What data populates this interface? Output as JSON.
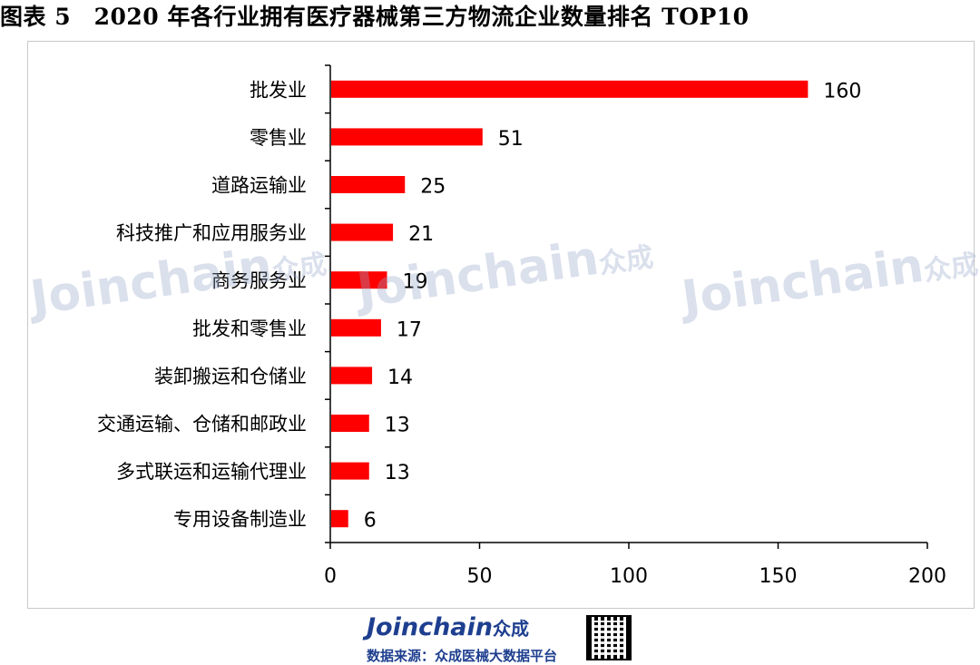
{
  "figure": {
    "title": "图表 5　2020 年各行业拥有医疗器械第三方物流企业数量排名 TOP10"
  },
  "chart_data": {
    "type": "bar",
    "orientation": "horizontal",
    "categories": [
      "批发业",
      "零售业",
      "道路运输业",
      "科技推广和应用服务业",
      "商务服务业",
      "批发和零售业",
      "装卸搬运和仓储业",
      "交通运输、仓储和邮政业",
      "多式联运和运输代理业",
      "专用设备制造业"
    ],
    "values": [
      160,
      51,
      25,
      21,
      19,
      17,
      14,
      13,
      13,
      6
    ],
    "xlim": [
      0,
      200
    ],
    "xticks": [
      0,
      50,
      100,
      150,
      200
    ],
    "bar_color": "#ff0000",
    "grid": false,
    "legend": "none"
  },
  "watermark": {
    "brand": "Joinchain",
    "brand_cn": "众成"
  },
  "source": {
    "brand": "Joinchain",
    "brand_cn": "众成",
    "text": "数据来源：众成医械大数据平台",
    "brand_color": "#1e3f8f"
  }
}
